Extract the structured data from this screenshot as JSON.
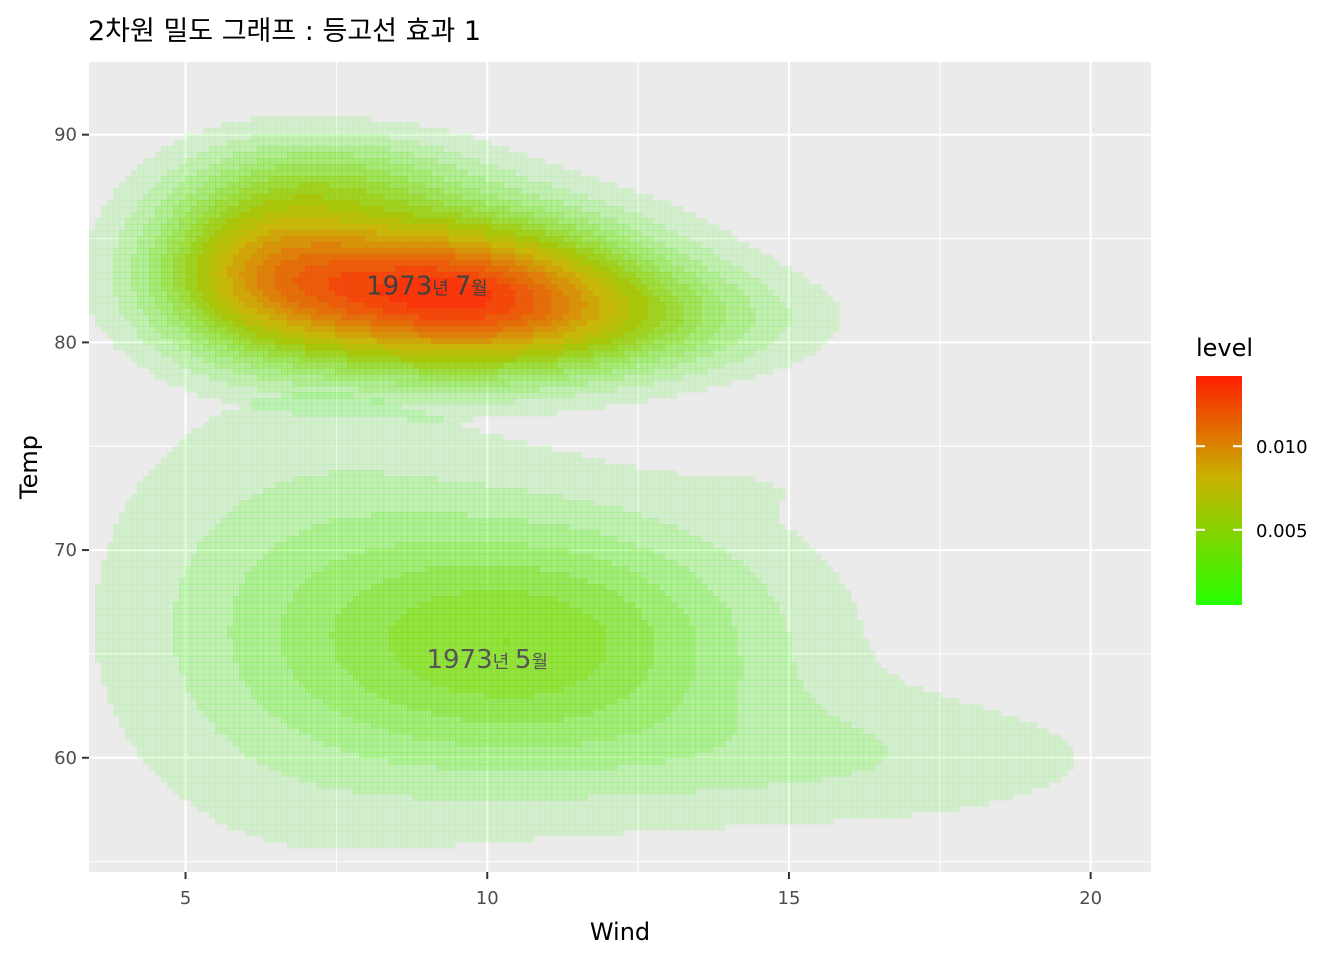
{
  "chart_data": {
    "type": "density2d",
    "title": "2차원 밀도 그래프 : 등고선 효과 1",
    "xlabel": "Wind",
    "ylabel": "Temp",
    "xlim": [
      3.4,
      21.0
    ],
    "ylim": [
      54.5,
      93.5
    ],
    "x_ticks": [
      5,
      10,
      15,
      20
    ],
    "y_ticks": [
      60,
      70,
      80,
      90
    ],
    "grid": true,
    "background": "#ebebeb",
    "legend": {
      "title": "level",
      "position": "right",
      "range": [
        0.0005,
        0.0142
      ],
      "ticks": [
        0.005,
        0.01
      ],
      "tick_labels": [
        "0.005",
        "0.010"
      ],
      "low_color": "#26ff00",
      "mid_color": "#c8b400",
      "high_color": "#ff1e00"
    },
    "annotations": [
      {
        "text_main": "1973",
        "text_year": "년",
        "text_num": "7",
        "text_month": "월",
        "x": 9.0,
        "y": 82.7,
        "color": "#404040"
      },
      {
        "text_main": "1973",
        "text_year": "년",
        "text_num": "5",
        "text_month": "월",
        "x": 10.0,
        "y": 64.7,
        "color": "#555555"
      }
    ],
    "series": [
      {
        "name": "July",
        "components": [
          {
            "cx": 9.2,
            "cy": 82.5,
            "sx": 2.2,
            "sy": 2.6,
            "w": 1.0
          },
          {
            "cx": 6.2,
            "cy": 84.0,
            "sx": 1.3,
            "sy": 3.0,
            "w": 0.45
          },
          {
            "cx": 12.0,
            "cy": 81.0,
            "sx": 2.2,
            "sy": 1.8,
            "w": 0.25
          },
          {
            "cx": 7.8,
            "cy": 88.0,
            "sx": 1.5,
            "sy": 1.6,
            "w": 0.2
          },
          {
            "cx": 15.5,
            "cy": 91.0,
            "sx": 0.9,
            "sy": 0.8,
            "w": 0.04
          }
        ],
        "levels": [
          0.0008,
          0.0016,
          0.0024,
          0.0032,
          0.004,
          0.0048,
          0.0056,
          0.0064,
          0.0072,
          0.008,
          0.0088,
          0.0096,
          0.0104,
          0.0112,
          0.012,
          0.0128,
          0.0136,
          0.0142
        ]
      },
      {
        "name": "May",
        "components": [
          {
            "cx": 10.8,
            "cy": 65.5,
            "sx": 2.6,
            "sy": 4.2,
            "w": 1.0
          },
          {
            "cx": 7.0,
            "cy": 67.0,
            "sx": 2.2,
            "sy": 7.0,
            "w": 0.35
          },
          {
            "cx": 16.0,
            "cy": 60.0,
            "sx": 3.0,
            "sy": 2.2,
            "w": 0.25
          },
          {
            "cx": 14.5,
            "cy": 73.0,
            "sx": 0.9,
            "sy": 0.8,
            "w": 0.06
          }
        ],
        "levels": [
          0.0005,
          0.0012,
          0.0019,
          0.0026,
          0.0033,
          0.004,
          0.0047
        ]
      }
    ]
  }
}
